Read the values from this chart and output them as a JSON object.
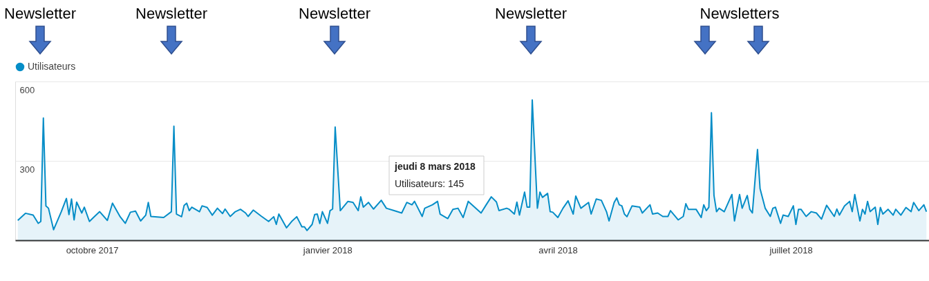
{
  "chart_data": {
    "type": "area",
    "legend": "top left",
    "grid": "y",
    "xlim": [
      "2017-09-01",
      "2018-08-24"
    ],
    "xticks": [
      {
        "value": "2017-10-01",
        "label": "octobre 2017"
      },
      {
        "value": "2018-01-01",
        "label": "janvier 2018"
      },
      {
        "value": "2018-04-01",
        "label": "avril 2018"
      },
      {
        "value": "2018-07-01",
        "label": "juillet 2018"
      }
    ],
    "ylim": [
      0,
      600
    ],
    "yticks": [
      300,
      600
    ],
    "x": [
      "2017-09-02",
      "2017-09-05",
      "2017-09-08",
      "2017-09-10",
      "2017-09-11",
      "2017-09-12",
      "2017-09-13",
      "2017-09-14",
      "2017-09-16",
      "2017-09-19",
      "2017-09-21",
      "2017-09-22",
      "2017-09-23",
      "2017-09-24",
      "2017-09-25",
      "2017-09-27",
      "2017-09-28",
      "2017-09-30",
      "2017-10-02",
      "2017-10-04",
      "2017-10-07",
      "2017-10-09",
      "2017-10-12",
      "2017-10-14",
      "2017-10-16",
      "2017-10-18",
      "2017-10-20",
      "2017-10-22",
      "2017-10-23",
      "2017-10-24",
      "2017-10-29",
      "2017-11-01",
      "2017-11-02",
      "2017-11-03",
      "2017-11-05",
      "2017-11-06",
      "2017-11-07",
      "2017-11-08",
      "2017-11-09",
      "2017-11-12",
      "2017-11-13",
      "2017-11-15",
      "2017-11-17",
      "2017-11-19",
      "2017-11-21",
      "2017-11-22",
      "2017-11-24",
      "2017-11-26",
      "2017-11-28",
      "2017-11-30",
      "2017-12-01",
      "2017-12-03",
      "2017-12-06",
      "2017-12-09",
      "2017-12-11",
      "2017-12-12",
      "2017-12-13",
      "2017-12-16",
      "2017-12-18",
      "2017-12-20",
      "2017-12-22",
      "2017-12-23",
      "2017-12-24",
      "2017-12-26",
      "2017-12-27",
      "2017-12-28",
      "2017-12-29",
      "2017-12-30",
      "2018-01-01",
      "2018-01-02",
      "2018-01-03",
      "2018-01-04",
      "2018-01-06",
      "2018-01-09",
      "2018-01-11",
      "2018-01-13",
      "2018-01-14",
      "2018-01-15",
      "2018-01-17",
      "2018-01-19",
      "2018-01-22",
      "2018-01-24",
      "2018-01-27",
      "2018-01-30",
      "2018-02-01",
      "2018-02-03",
      "2018-02-04",
      "2018-02-07",
      "2018-02-08",
      "2018-02-11",
      "2018-02-13",
      "2018-02-14",
      "2018-02-17",
      "2018-02-19",
      "2018-02-21",
      "2018-02-23",
      "2018-02-25",
      "2018-03-02",
      "2018-03-04",
      "2018-03-06",
      "2018-03-08",
      "2018-03-09",
      "2018-03-12",
      "2018-03-13",
      "2018-03-15",
      "2018-03-16",
      "2018-03-17",
      "2018-03-19",
      "2018-03-20",
      "2018-03-21",
      "2018-03-22",
      "2018-03-24",
      "2018-03-25",
      "2018-03-26",
      "2018-03-28",
      "2018-03-29",
      "2018-03-30",
      "2018-04-01",
      "2018-04-03",
      "2018-04-05",
      "2018-04-07",
      "2018-04-08",
      "2018-04-10",
      "2018-04-13",
      "2018-04-14",
      "2018-04-16",
      "2018-04-18",
      "2018-04-20",
      "2018-04-21",
      "2018-04-23",
      "2018-04-24",
      "2018-04-25",
      "2018-04-26",
      "2018-04-27",
      "2018-04-28",
      "2018-04-30",
      "2018-05-03",
      "2018-05-04",
      "2018-05-07",
      "2018-05-08",
      "2018-05-10",
      "2018-05-12",
      "2018-05-14",
      "2018-05-15",
      "2018-05-18",
      "2018-05-20",
      "2018-05-21",
      "2018-05-22",
      "2018-05-25",
      "2018-05-27",
      "2018-05-28",
      "2018-05-29",
      "2018-05-30",
      "2018-05-31",
      "2018-06-01",
      "2018-06-02",
      "2018-06-03",
      "2018-06-05",
      "2018-06-08",
      "2018-06-09",
      "2018-06-11",
      "2018-06-12",
      "2018-06-14",
      "2018-06-15",
      "2018-06-16",
      "2018-06-18",
      "2018-06-19",
      "2018-06-21",
      "2018-06-23",
      "2018-06-24",
      "2018-06-25",
      "2018-06-27",
      "2018-06-28",
      "2018-06-30",
      "2018-07-02",
      "2018-07-03",
      "2018-07-04",
      "2018-07-05",
      "2018-07-07",
      "2018-07-09",
      "2018-07-11",
      "2018-07-13",
      "2018-07-15",
      "2018-07-18",
      "2018-07-19",
      "2018-07-20",
      "2018-07-22",
      "2018-07-24",
      "2018-07-25",
      "2018-07-26",
      "2018-07-28",
      "2018-07-29",
      "2018-07-30",
      "2018-07-31",
      "2018-08-01",
      "2018-08-03",
      "2018-08-04",
      "2018-08-05",
      "2018-08-06",
      "2018-08-08",
      "2018-08-10",
      "2018-08-11",
      "2018-08-13",
      "2018-08-15",
      "2018-08-17",
      "2018-08-18",
      "2018-08-20",
      "2018-08-22",
      "2018-08-23"
    ],
    "series": [
      {
        "name": "Utilisateurs",
        "color": "#058dc7",
        "values": [
          75,
          102,
          95,
          64,
          71,
          462,
          130,
          121,
          40,
          108,
          158,
          97,
          156,
          77,
          144,
          103,
          125,
          71,
          90,
          108,
          75,
          140,
          89,
          64,
          106,
          110,
          73,
          95,
          143,
          90,
          86,
          108,
          431,
          99,
          89,
          132,
          140,
          112,
          125,
          108,
          130,
          124,
          95,
          121,
          101,
          118,
          90,
          108,
          117,
          103,
          90,
          114,
          92,
          71,
          89,
          60,
          99,
          47,
          71,
          89,
          51,
          51,
          37,
          60,
          97,
          99,
          63,
          108,
          64,
          112,
          118,
          428,
          112,
          147,
          143,
          112,
          164,
          125,
          143,
          118,
          151,
          121,
          112,
          103,
          143,
          134,
          147,
          90,
          121,
          134,
          147,
          99,
          82,
          117,
          121,
          86,
          147,
          103,
          134,
          164,
          145,
          112,
          121,
          117,
          99,
          144,
          95,
          182,
          125,
          125,
          530,
          121,
          182,
          162,
          177,
          108,
          106,
          86,
          121,
          149,
          99,
          167,
          121,
          143,
          99,
          156,
          151,
          108,
          73,
          143,
          160,
          134,
          130,
          99,
          89,
          130,
          125,
          103,
          134,
          99,
          103,
          90,
          90,
          112,
          77,
          90,
          138,
          117,
          117,
          86,
          134,
          112,
          125,
          482,
          169,
          108,
          121,
          108,
          173,
          73,
          173,
          121,
          169,
          117,
          103,
          343,
          195,
          121,
          90,
          121,
          125,
          64,
          95,
          90,
          130,
          60,
          117,
          117,
          90,
          108,
          103,
          80,
          132,
          90,
          118,
          95,
          130,
          147,
          108,
          173,
          73,
          117,
          99,
          147,
          108,
          125,
          60,
          124,
          99,
          117,
          95,
          117,
          95,
          124,
          108,
          143,
          112,
          134,
          108
        ]
      }
    ],
    "annotations": [
      "Newsletter",
      "Newsletter",
      "Newsletter",
      "Newsletter",
      "Newsletters",
      "jeudi 8 mars 2018",
      "Utilisateurs: 145"
    ]
  }
}
